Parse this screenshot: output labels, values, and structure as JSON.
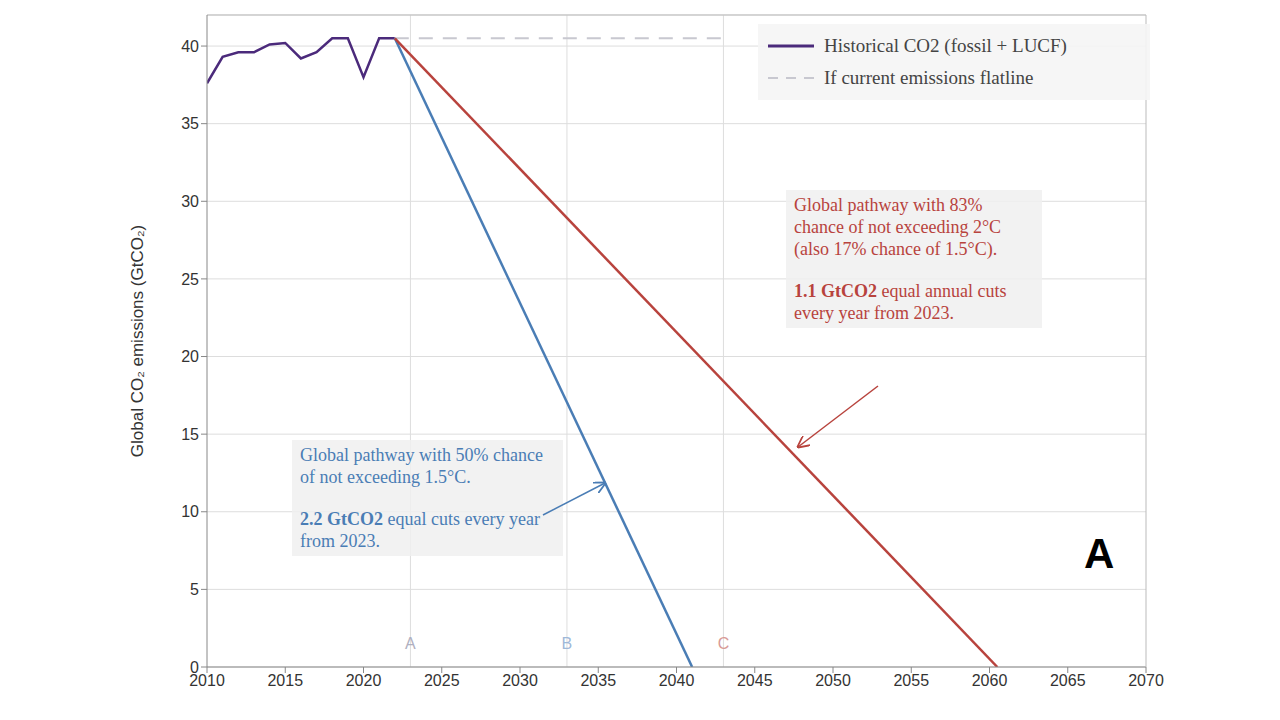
{
  "chart_data": {
    "type": "line",
    "y_label": "Global CO₂ emissions (GtCO₂)",
    "panel_label": "A",
    "xlim": [
      2010,
      2070
    ],
    "xticks": [
      2010,
      2015,
      2020,
      2025,
      2030,
      2035,
      2040,
      2045,
      2050,
      2055,
      2060,
      2065,
      2070
    ],
    "ylim": [
      0,
      42
    ],
    "yticks": [
      0,
      5,
      10,
      15,
      20,
      25,
      30,
      35,
      40
    ],
    "grid": true,
    "legend": "upper right",
    "markers": [
      {
        "x": 2023,
        "label": "A",
        "color": "#b0b0c0"
      },
      {
        "x": 2033,
        "label": "B",
        "color": "#9fb8d8"
      },
      {
        "x": 2043,
        "label": "C",
        "color": "#d89a96"
      }
    ],
    "series": [
      {
        "name": "Historical CO2 (fossil + LUCF)",
        "color": "#4b2a7b",
        "line_style": "solid",
        "x": [
          2010,
          2011,
          2012,
          2013,
          2014,
          2015,
          2016,
          2017,
          2018,
          2019,
          2020,
          2021,
          2022
        ],
        "values": [
          37.6,
          39.3,
          39.6,
          39.6,
          40.1,
          40.2,
          39.2,
          39.6,
          40.5,
          40.5,
          38.0,
          40.5,
          40.5
        ]
      },
      {
        "name": "If current emissions flatline",
        "color": "#c8c8d0",
        "line_style": "dashed",
        "x": [
          2022,
          2043
        ],
        "values": [
          40.5,
          40.5
        ]
      },
      {
        "color": "#4a7db5",
        "line_style": "solid",
        "x": [
          2022,
          2041
        ],
        "values": [
          40.5,
          0
        ],
        "annotation": {
          "text": "Global pathway with 50% chance of not exceeding 1.5°C.",
          "note_bold": "2.2 GtCO2",
          "note": "equal cuts every year from 2023."
        }
      },
      {
        "color": "#b8433d",
        "line_style": "solid",
        "x": [
          2022,
          2060.5
        ],
        "values": [
          40.5,
          0
        ],
        "annotation": {
          "text": "Global pathway with 83% chance of not exceeding 2°C (also 17% chance of 1.5°C).",
          "note_bold": "1.1 GtCO2",
          "note": "equal annual cuts every year from 2023."
        }
      }
    ]
  }
}
